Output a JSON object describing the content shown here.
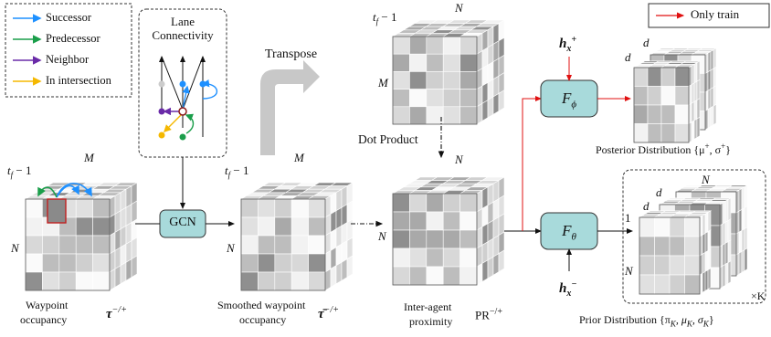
{
  "legend": {
    "items": [
      {
        "label": "Successor",
        "color": "#1e90ff"
      },
      {
        "label": "Predecessor",
        "color": "#1a9e4a"
      },
      {
        "label": "Neighbor",
        "color": "#6a2ba8"
      },
      {
        "label": "In intersection",
        "color": "#f5b800"
      }
    ]
  },
  "lane_box": {
    "title_line1": "Lane",
    "title_line2": "Connectivity"
  },
  "transpose_label": "Transpose",
  "dot_product_label": "Dot Product",
  "only_train_label": "Only train",
  "gcn_label": "GCN",
  "f_phi": "F",
  "f_phi_sub": "ϕ",
  "f_theta": "F",
  "f_theta_sub": "θ",
  "h_plus": "h",
  "h_plus_sub": "x",
  "h_plus_sup": "+",
  "h_minus": "h",
  "h_minus_sub": "x",
  "h_minus_sup": "−",
  "cube_waypoint": {
    "top": "M",
    "left": "t",
    "left_suffix": " − 1",
    "side": "N",
    "caption1": "Waypoint",
    "caption2": "occupancy",
    "symbol": "τ",
    "symbol_sup": "−/+"
  },
  "cube_smoothed": {
    "top": "M",
    "left": "t",
    "left_suffix": " − 1",
    "side": "N",
    "caption1": "Smoothed waypoint",
    "caption2": "occupancy",
    "symbol": "τ̄",
    "symbol_sup": "−/+"
  },
  "cube_transposed": {
    "top": "N",
    "left": "t",
    "left_suffix": " − 1",
    "side": "M"
  },
  "cube_proximity": {
    "top": "N",
    "side": "N",
    "caption1": "Inter-agent",
    "caption2": "proximity",
    "symbol": "PR",
    "symbol_sup": "−/+"
  },
  "posterior": {
    "d1": "d",
    "d2": "d",
    "caption": "Posterior Distribution  {μ",
    "caption_sup1": "+",
    "caption_mid": ", σ",
    "caption_sup2": "+",
    "caption_end": "}"
  },
  "prior": {
    "n": "N",
    "d1": "d",
    "d2": "d",
    "one": "1",
    "side": "N",
    "times_k": "×K",
    "caption": "Prior Distribution  {π",
    "caption_end": "}"
  },
  "prior_sub": "K",
  "prior_mu": ", μ",
  "prior_sigma": ", σ"
}
